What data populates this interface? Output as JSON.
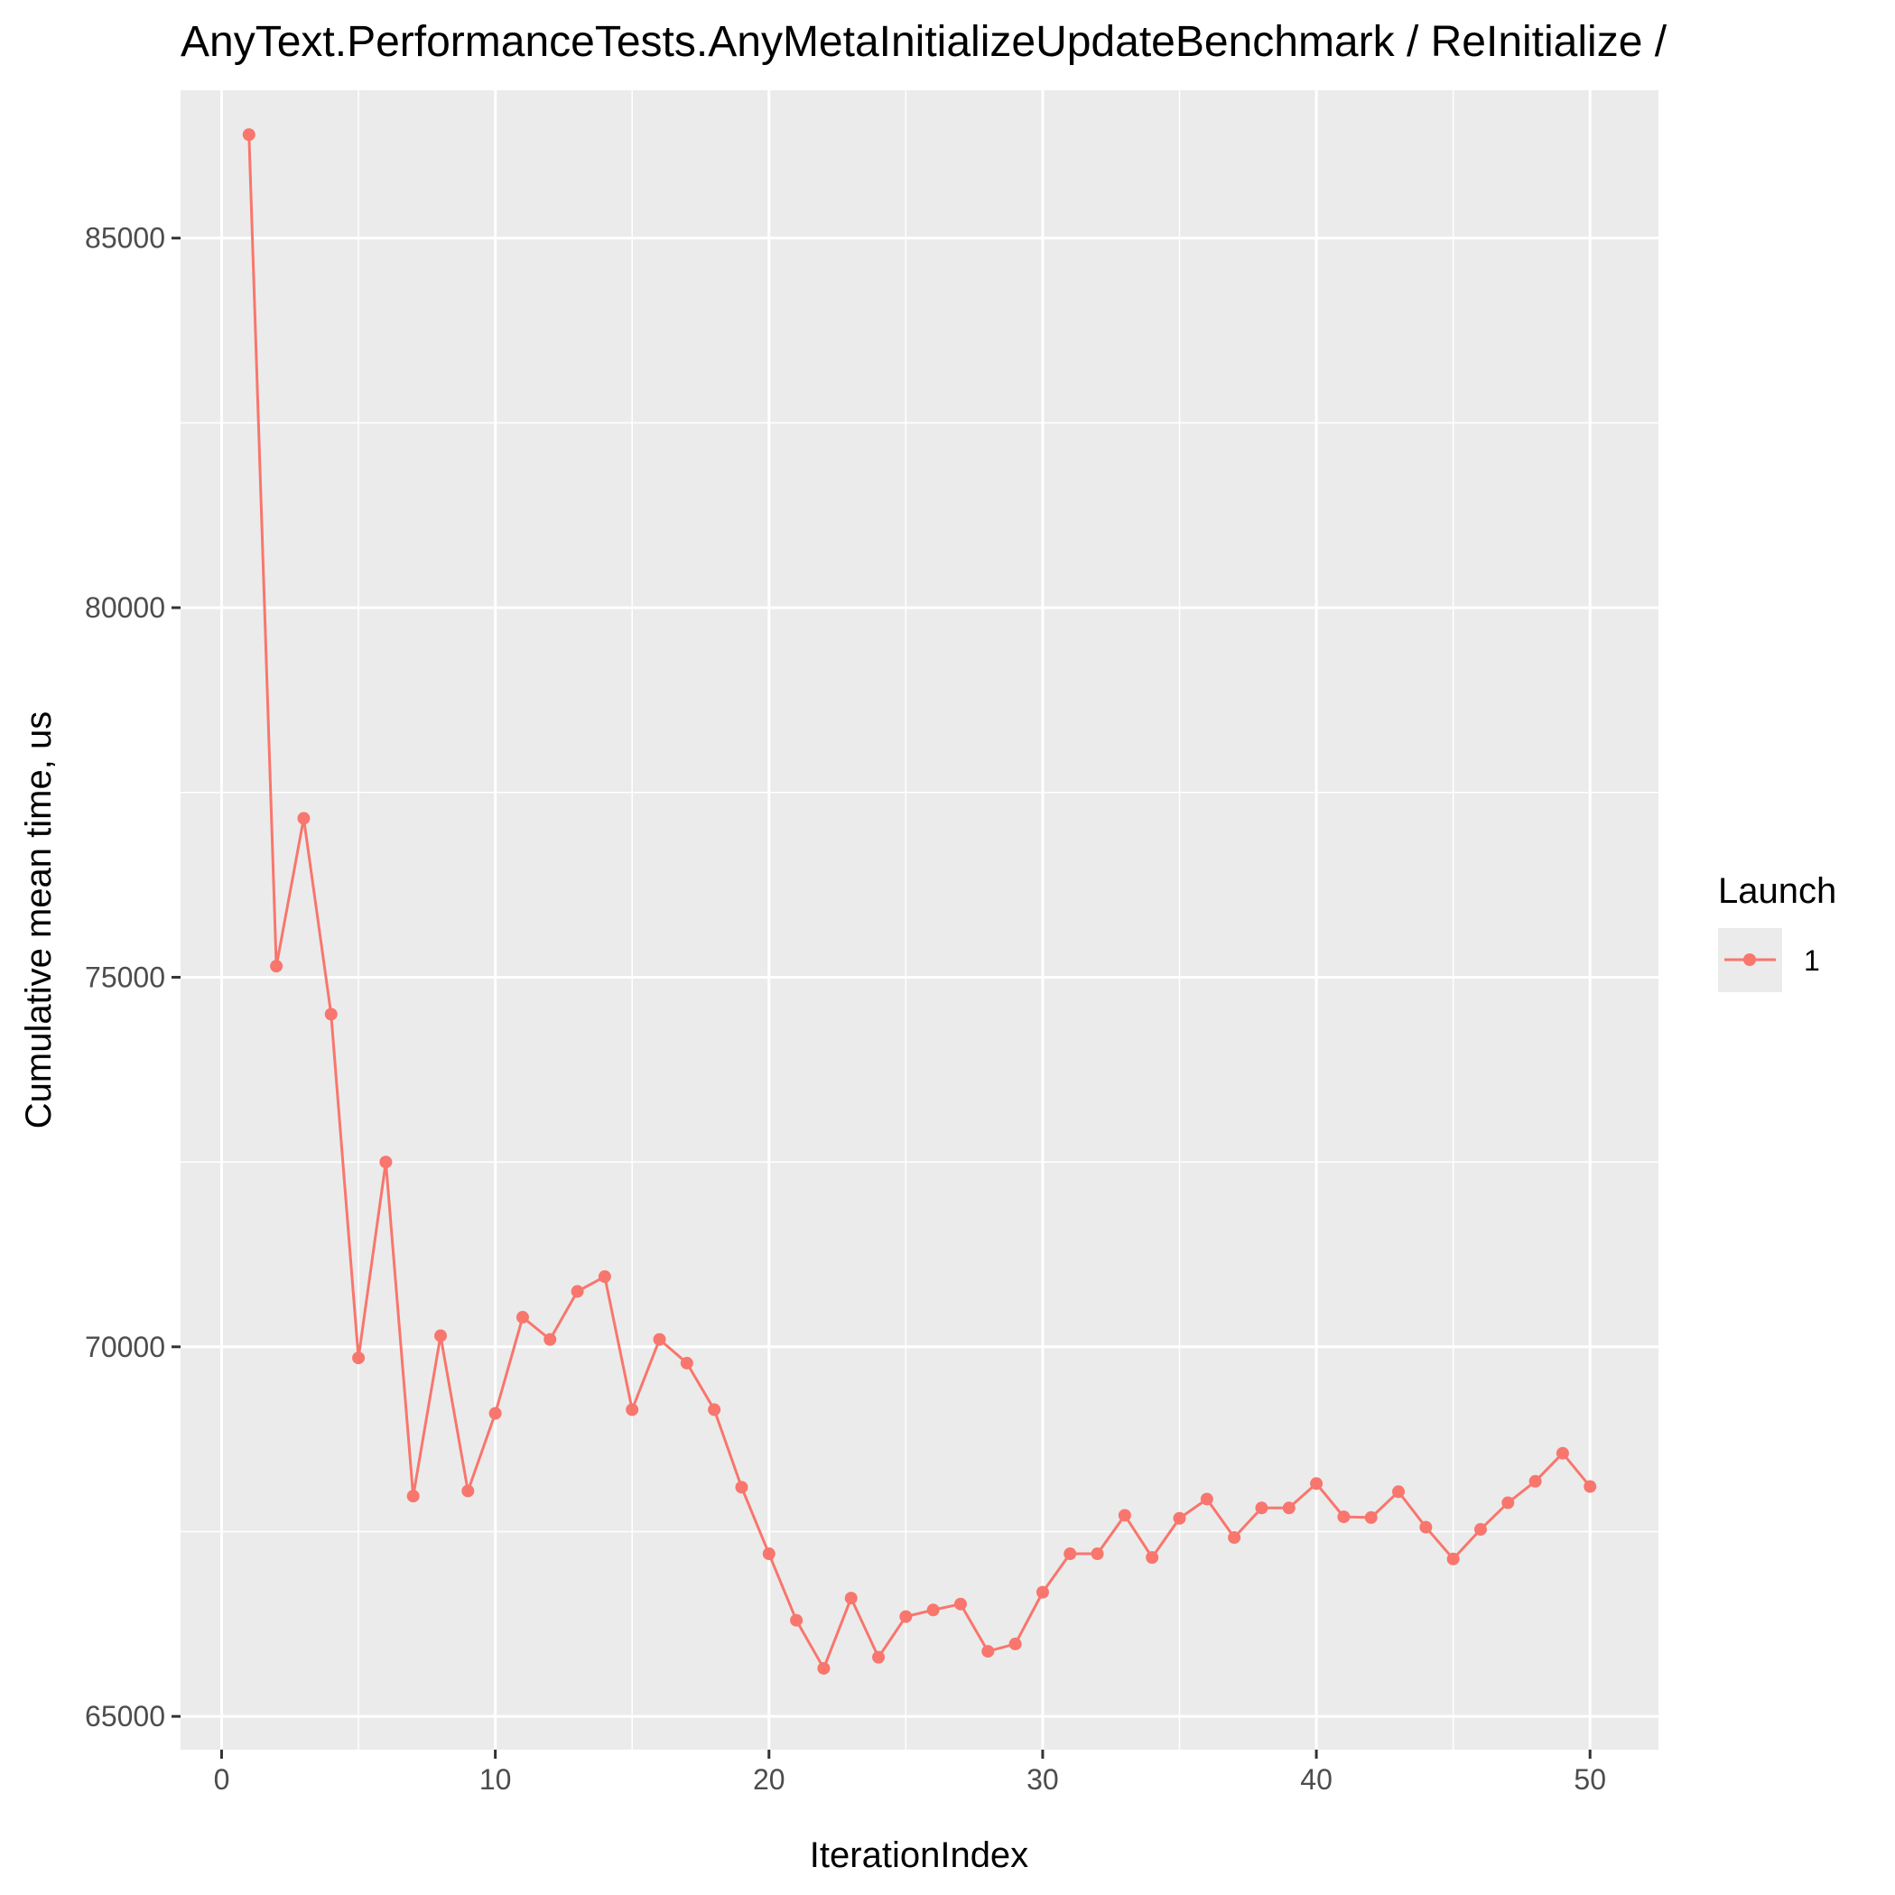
{
  "chart_data": {
    "type": "line",
    "title": "AnyText.PerformanceTests.AnyMetaInitializeUpdateBenchmark / ReInitialize /",
    "xlabel": "IterationIndex",
    "ylabel": "Cumulative mean time, us",
    "xlim": [
      -1.5,
      52.5
    ],
    "ylim": [
      64550,
      87000
    ],
    "x_ticks": [
      0,
      10,
      20,
      30,
      40,
      50
    ],
    "y_ticks": [
      65000,
      70000,
      75000,
      80000,
      85000
    ],
    "x_tick_labels": [
      "0",
      "10",
      "20",
      "30",
      "40",
      "50"
    ],
    "y_tick_labels": [
      "65000",
      "70000",
      "75000",
      "80000",
      "85000"
    ],
    "grid": true,
    "legend": {
      "title": "Launch",
      "position": "right"
    },
    "series": [
      {
        "name": "1",
        "color": "#F8766D",
        "x": [
          1,
          2,
          3,
          4,
          5,
          6,
          7,
          8,
          9,
          10,
          11,
          12,
          13,
          14,
          15,
          16,
          17,
          18,
          19,
          20,
          21,
          22,
          23,
          24,
          25,
          26,
          27,
          28,
          29,
          30,
          31,
          32,
          33,
          34,
          35,
          36,
          37,
          38,
          39,
          40,
          41,
          42,
          43,
          44,
          45,
          46,
          47,
          48,
          49,
          50
        ],
        "values": [
          86400,
          75150,
          77150,
          74500,
          69850,
          72500,
          67980,
          70150,
          68050,
          69100,
          70400,
          70100,
          70750,
          70950,
          69150,
          70100,
          69780,
          69150,
          68100,
          67200,
          66300,
          65650,
          66600,
          65800,
          66350,
          66440,
          66520,
          65880,
          65980,
          66680,
          67200,
          67200,
          67720,
          67150,
          67680,
          67940,
          67420,
          67820,
          67820,
          68150,
          67700,
          67690,
          68040,
          67560,
          67130,
          67530,
          67890,
          68180,
          68560,
          68110
        ]
      }
    ]
  }
}
